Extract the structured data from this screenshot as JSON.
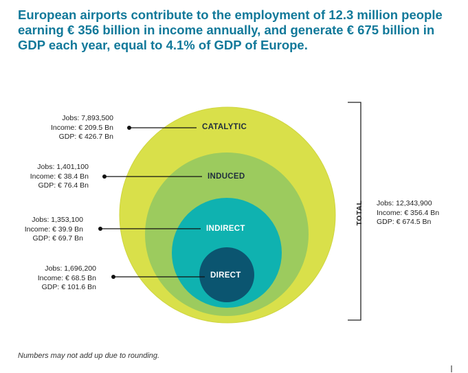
{
  "headline": [
    "European airports contribute to the employment of 12.3 million people",
    "earning € 356 billion in income annually, and generate € 675 billion in",
    "GDP each year, equal to 4.1% of GDP of Europe."
  ],
  "levels": [
    {
      "id": "catalytic",
      "name": "CATALYTIC",
      "jobs": "Jobs: 7,893,500",
      "income": "Income: € 209.5 Bn",
      "gdp": "GDP: € 426.7 Bn",
      "color": "#d9e04a",
      "label_color": "#1f2d3d"
    },
    {
      "id": "induced",
      "name": "INDUCED",
      "jobs": "Jobs: 1,401,100",
      "income": "Income: € 38.4 Bn",
      "gdp": "GDP: € 76.4 Bn",
      "color": "#9ccb5e",
      "label_color": "#1f2d3d"
    },
    {
      "id": "indirect",
      "name": "INDIRECT",
      "jobs": "Jobs: 1,353,100",
      "income": "Income: € 39.9 Bn",
      "gdp": "GDP: € 69.7 Bn",
      "color": "#0fb2b0",
      "label_color": "#ffffff"
    },
    {
      "id": "direct",
      "name": "DIRECT",
      "jobs": "Jobs: 1,696,200",
      "income": "Income: € 68.5 Bn",
      "gdp": "GDP: € 101.6 Bn",
      "color": "#0b5570",
      "label_color": "#ffffff"
    }
  ],
  "total": {
    "label": "TOTAL",
    "jobs": "Jobs: 12,343,900",
    "income": "Income: € 356.4 Bn",
    "gdp": "GDP: € 674.5 Bn"
  },
  "footnote": "Numbers may not add up due to rounding.",
  "colors": {
    "headline": "#12799a",
    "leader": "#111111",
    "outer_ring_edge": "#cfd53f"
  }
}
